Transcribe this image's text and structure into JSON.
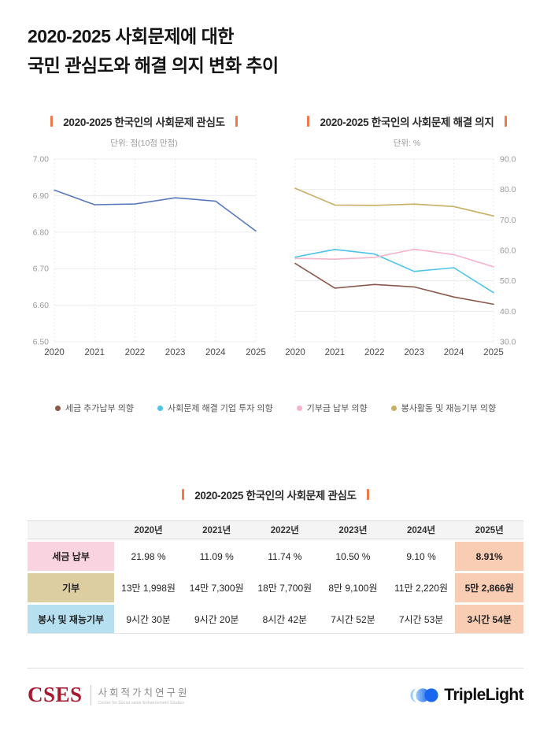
{
  "colors": {
    "accent": "#F0784A"
  },
  "page": {
    "title_line1": "2020-2025 사회문제에 대한",
    "title_line2": "국민 관심도와 해결 의지 변화 추이"
  },
  "chart_data": [
    {
      "type": "line",
      "title": "2020-2025 한국인의 사회문제 관심도",
      "unit": "단위: 점(10점 만점)",
      "x": [
        "2020",
        "2021",
        "2022",
        "2023",
        "2024",
        "2025"
      ],
      "series": [
        {
          "name": "사회문제 관심도",
          "color": "#5878BE",
          "values": [
            6.915,
            6.875,
            6.877,
            6.894,
            6.885,
            6.803
          ]
        }
      ],
      "ylim": [
        6.5,
        7.0
      ],
      "ystep": 0.1,
      "ydecimals": 2,
      "yaxis": "left",
      "grid": true,
      "legend_position": "none"
    },
    {
      "type": "line",
      "title": "2020-2025 한국인의 사회문제 해결 의지",
      "unit": "단위: %",
      "x": [
        "2020",
        "2021",
        "2022",
        "2023",
        "2024",
        "2025"
      ],
      "series": [
        {
          "name": "세금 추가납부 의향",
          "color": "#8A594B",
          "values": [
            55.7,
            47.6,
            48.8,
            48.0,
            44.7,
            42.3
          ]
        },
        {
          "name": "사회문제 해결 기업 투자 의향",
          "color": "#4EC4E8",
          "values": [
            57.8,
            60.3,
            58.8,
            53.1,
            54.3,
            46.1
          ]
        },
        {
          "name": "기부금 납부 의향",
          "color": "#F6B3CB",
          "values": [
            57.4,
            57.1,
            57.7,
            60.4,
            58.6,
            54.6
          ]
        },
        {
          "name": "봉사활동 및 재능기부 의향",
          "color": "#C7AF63",
          "values": [
            80.4,
            74.9,
            74.8,
            75.2,
            74.4,
            71.3
          ]
        }
      ],
      "ylim": [
        30,
        90
      ],
      "ystep": 10,
      "ydecimals": 1,
      "yaxis": "right",
      "grid": true,
      "legend_position": "bottom"
    }
  ],
  "table": {
    "title": "2020-2025 한국인의 사회문제 관심도",
    "headers": [
      "",
      "2020년",
      "2021년",
      "2022년",
      "2023년",
      "2024년",
      "2025년"
    ],
    "rows": [
      {
        "label": "세금 납부",
        "label_bg": "#F9D3DF",
        "values": [
          "21.98 %",
          "11.09 %",
          "11.74 %",
          "10.50 %",
          "9.10 %",
          "8.91%"
        ]
      },
      {
        "label": "기부",
        "label_bg": "#DDCEA1",
        "values": [
          "13만 1,998원",
          "14만 7,300원",
          "18만 7,700원",
          "8만 9,100원",
          "11만 2,220원",
          "5만 2,866원"
        ]
      },
      {
        "label": "봉사 및 재능기부",
        "label_bg": "#B6E0F0",
        "values": [
          "9시간 30분",
          "9시간 20분",
          "8시간 42분",
          "7시간 52분",
          "7시간 53분",
          "3시간 54분"
        ]
      }
    ],
    "highlight_bg": "#F9CDB4"
  },
  "footer": {
    "cses_logo": "CSES",
    "cses_kr": "사회적가치연구원",
    "cses_en": "Center for Social value Enhancement Studies",
    "brand": "TripleLight"
  }
}
